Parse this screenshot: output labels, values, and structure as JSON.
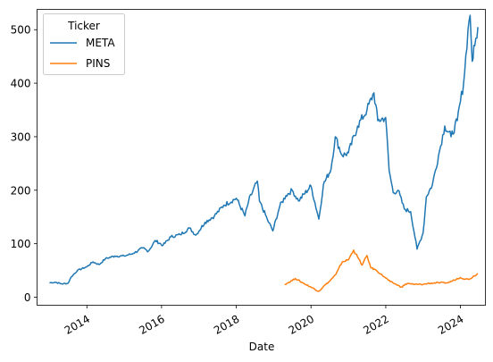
{
  "chart_data": {
    "type": "line",
    "xlabel": "Date",
    "ylabel": "",
    "ylim": [
      -15,
      538
    ],
    "xlim": [
      "2012-09-01",
      "2024-09-01"
    ],
    "x_ticks": [
      "2014",
      "2016",
      "2018",
      "2020",
      "2022",
      "2024"
    ],
    "y_ticks": [
      0,
      100,
      200,
      300,
      400,
      500
    ],
    "grid": false,
    "legend": {
      "title": "Ticker",
      "placement": "top-left"
    },
    "series": [
      {
        "name": "META",
        "color": "#1f77b4",
        "points": [
          [
            "2012-12-31",
            27
          ],
          [
            "2013-03-01",
            28
          ],
          [
            "2013-05-01",
            25
          ],
          [
            "2013-07-01",
            26
          ],
          [
            "2013-08-01",
            38
          ],
          [
            "2013-10-01",
            50
          ],
          [
            "2014-01-01",
            57
          ],
          [
            "2014-03-01",
            66
          ],
          [
            "2014-05-01",
            61
          ],
          [
            "2014-07-01",
            72
          ],
          [
            "2014-10-01",
            77
          ],
          [
            "2015-01-01",
            77
          ],
          [
            "2015-04-01",
            82
          ],
          [
            "2015-07-01",
            92
          ],
          [
            "2015-08-25",
            86
          ],
          [
            "2015-11-01",
            106
          ],
          [
            "2016-01-15",
            97
          ],
          [
            "2016-04-01",
            113
          ],
          [
            "2016-07-01",
            117
          ],
          [
            "2016-10-01",
            129
          ],
          [
            "2016-12-01",
            116
          ],
          [
            "2017-03-01",
            140
          ],
          [
            "2017-06-01",
            152
          ],
          [
            "2017-09-01",
            172
          ],
          [
            "2018-01-01",
            185
          ],
          [
            "2018-03-27",
            152
          ],
          [
            "2018-05-01",
            180
          ],
          [
            "2018-07-25",
            217
          ],
          [
            "2018-08-15",
            180
          ],
          [
            "2018-11-01",
            145
          ],
          [
            "2018-12-24",
            124
          ],
          [
            "2019-03-01",
            170
          ],
          [
            "2019-05-01",
            190
          ],
          [
            "2019-07-01",
            200
          ],
          [
            "2019-09-01",
            180
          ],
          [
            "2020-01-01",
            208
          ],
          [
            "2020-03-18",
            146
          ],
          [
            "2020-05-01",
            210
          ],
          [
            "2020-07-15",
            240
          ],
          [
            "2020-08-25",
            300
          ],
          [
            "2020-11-01",
            265
          ],
          [
            "2021-01-01",
            270
          ],
          [
            "2021-04-01",
            320
          ],
          [
            "2021-07-01",
            350
          ],
          [
            "2021-09-07",
            382
          ],
          [
            "2021-10-15",
            330
          ],
          [
            "2021-12-31",
            336
          ],
          [
            "2022-02-03",
            237
          ],
          [
            "2022-03-15",
            195
          ],
          [
            "2022-05-01",
            200
          ],
          [
            "2022-07-01",
            165
          ],
          [
            "2022-09-01",
            160
          ],
          [
            "2022-11-03",
            90
          ],
          [
            "2023-01-01",
            120
          ],
          [
            "2023-02-02",
            188
          ],
          [
            "2023-04-01",
            210
          ],
          [
            "2023-06-01",
            265
          ],
          [
            "2023-08-01",
            320
          ],
          [
            "2023-10-01",
            300
          ],
          [
            "2023-12-01",
            330
          ],
          [
            "2024-02-01",
            400
          ],
          [
            "2024-03-15",
            500
          ],
          [
            "2024-04-05",
            527
          ],
          [
            "2024-04-25",
            441
          ],
          [
            "2024-05-20",
            470
          ],
          [
            "2024-06-20",
            505
          ]
        ]
      },
      {
        "name": "PINS",
        "color": "#ff7f0e",
        "points": [
          [
            "2019-04-18",
            24
          ],
          [
            "2019-06-01",
            28
          ],
          [
            "2019-08-01",
            35
          ],
          [
            "2019-10-01",
            28
          ],
          [
            "2019-12-31",
            19
          ],
          [
            "2020-03-18",
            11
          ],
          [
            "2020-05-01",
            20
          ],
          [
            "2020-07-01",
            30
          ],
          [
            "2020-09-01",
            43
          ],
          [
            "2020-11-01",
            66
          ],
          [
            "2021-01-01",
            70
          ],
          [
            "2021-02-20",
            88
          ],
          [
            "2021-04-01",
            75
          ],
          [
            "2021-05-15",
            60
          ],
          [
            "2021-07-01",
            78
          ],
          [
            "2021-08-05",
            56
          ],
          [
            "2021-10-01",
            50
          ],
          [
            "2021-12-31",
            36
          ],
          [
            "2022-02-15",
            29
          ],
          [
            "2022-04-01",
            25
          ],
          [
            "2022-06-01",
            19
          ],
          [
            "2022-08-01",
            26
          ],
          [
            "2022-10-01",
            24
          ],
          [
            "2022-12-31",
            24
          ],
          [
            "2023-03-01",
            26
          ],
          [
            "2023-06-01",
            27
          ],
          [
            "2023-09-01",
            27
          ],
          [
            "2023-11-01",
            32
          ],
          [
            "2023-12-31",
            37
          ],
          [
            "2024-02-10",
            34
          ],
          [
            "2024-04-01",
            34
          ],
          [
            "2024-05-15",
            40
          ],
          [
            "2024-06-20",
            44
          ]
        ]
      }
    ]
  }
}
